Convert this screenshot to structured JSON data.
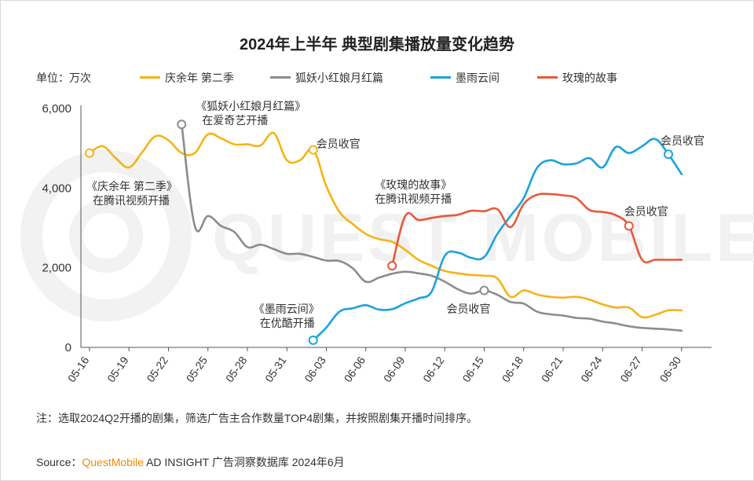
{
  "unit_label": "单位：万次",
  "note": "注：选取2024Q2开播的剧集，筛选广告主合作数量TOP4剧集，并按照剧集开播时间排序。",
  "source": {
    "prefix": "Source：",
    "brand": "QuestMobile",
    "rest": " AD INSIGHT 广告洞察数据库 2024年6月"
  },
  "watermark": "QUEST MOBILE",
  "chart_data": {
    "type": "line",
    "title": "2024年上半年 典型剧集播放量变化趋势",
    "ylim": [
      0,
      6000
    ],
    "yticks": [
      0,
      2000,
      4000,
      6000
    ],
    "ytick_labels": [
      "0",
      "2,000",
      "4,000",
      "6,000"
    ],
    "xticks": [
      "05-16",
      "05-19",
      "05-22",
      "05-25",
      "05-28",
      "05-31",
      "06-03",
      "06-06",
      "06-09",
      "06-12",
      "06-15",
      "06-18",
      "06-21",
      "06-24",
      "06-27",
      "06-30"
    ],
    "grid": false,
    "legend_position": "top",
    "series": [
      {
        "name": "庆余年 第二季",
        "color": "#f5b316",
        "points": [
          [
            "05-16",
            4880
          ],
          [
            "05-17",
            5050
          ],
          [
            "05-18",
            4750
          ],
          [
            "05-19",
            4520
          ],
          [
            "05-20",
            4900
          ],
          [
            "05-21",
            5300
          ],
          [
            "05-22",
            5200
          ],
          [
            "05-23",
            4880
          ],
          [
            "05-24",
            4880
          ],
          [
            "05-25",
            5350
          ],
          [
            "05-26",
            5250
          ],
          [
            "05-27",
            5100
          ],
          [
            "05-28",
            5100
          ],
          [
            "05-29",
            5070
          ],
          [
            "05-30",
            5380
          ],
          [
            "05-31",
            4700
          ],
          [
            "06-01",
            4700
          ],
          [
            "06-02",
            4960
          ],
          [
            "06-03",
            4050
          ],
          [
            "06-04",
            3400
          ],
          [
            "06-05",
            3100
          ],
          [
            "06-06",
            2850
          ],
          [
            "06-07",
            2720
          ],
          [
            "06-08",
            2650
          ],
          [
            "06-09",
            2450
          ],
          [
            "06-10",
            2200
          ],
          [
            "06-11",
            2050
          ],
          [
            "06-12",
            1920
          ],
          [
            "06-13",
            1860
          ],
          [
            "06-14",
            1820
          ],
          [
            "06-15",
            1800
          ],
          [
            "06-16",
            1730
          ],
          [
            "06-17",
            1270
          ],
          [
            "06-18",
            1430
          ],
          [
            "06-19",
            1330
          ],
          [
            "06-20",
            1270
          ],
          [
            "06-21",
            1250
          ],
          [
            "06-22",
            1270
          ],
          [
            "06-23",
            1200
          ],
          [
            "06-24",
            1080
          ],
          [
            "06-25",
            1000
          ],
          [
            "06-26",
            1000
          ],
          [
            "06-27",
            760
          ],
          [
            "06-28",
            820
          ],
          [
            "06-29",
            930
          ],
          [
            "06-30",
            930
          ]
        ]
      },
      {
        "name": "狐妖小红娘月红篇",
        "color": "#8c8c8c",
        "points": [
          [
            "05-23",
            5600
          ],
          [
            "05-24",
            3050
          ],
          [
            "05-25",
            3300
          ],
          [
            "05-26",
            3050
          ],
          [
            "05-27",
            2900
          ],
          [
            "05-28",
            2520
          ],
          [
            "05-29",
            2580
          ],
          [
            "05-30",
            2470
          ],
          [
            "05-31",
            2350
          ],
          [
            "06-01",
            2350
          ],
          [
            "06-02",
            2270
          ],
          [
            "06-03",
            2180
          ],
          [
            "06-04",
            2170
          ],
          [
            "06-05",
            1990
          ],
          [
            "06-06",
            1650
          ],
          [
            "06-07",
            1750
          ],
          [
            "06-08",
            1850
          ],
          [
            "06-09",
            1900
          ],
          [
            "06-10",
            1860
          ],
          [
            "06-11",
            1800
          ],
          [
            "06-12",
            1650
          ],
          [
            "06-13",
            1460
          ],
          [
            "06-14",
            1350
          ],
          [
            "06-15",
            1430
          ],
          [
            "06-16",
            1320
          ],
          [
            "06-17",
            1140
          ],
          [
            "06-18",
            1100
          ],
          [
            "06-19",
            900
          ],
          [
            "06-20",
            830
          ],
          [
            "06-21",
            800
          ],
          [
            "06-22",
            740
          ],
          [
            "06-23",
            720
          ],
          [
            "06-24",
            650
          ],
          [
            "06-25",
            600
          ],
          [
            "06-26",
            530
          ],
          [
            "06-27",
            490
          ],
          [
            "06-28",
            470
          ],
          [
            "06-29",
            450
          ],
          [
            "06-30",
            420
          ]
        ]
      },
      {
        "name": "墨雨云间",
        "color": "#1aa3dc",
        "points": [
          [
            "06-02",
            180
          ],
          [
            "06-03",
            500
          ],
          [
            "06-04",
            900
          ],
          [
            "06-05",
            980
          ],
          [
            "06-06",
            1060
          ],
          [
            "06-07",
            950
          ],
          [
            "06-08",
            960
          ],
          [
            "06-09",
            1110
          ],
          [
            "06-10",
            1230
          ],
          [
            "06-11",
            1400
          ],
          [
            "06-12",
            2300
          ],
          [
            "06-13",
            2380
          ],
          [
            "06-14",
            2250
          ],
          [
            "06-15",
            2270
          ],
          [
            "06-16",
            2850
          ],
          [
            "06-17",
            3300
          ],
          [
            "06-18",
            3750
          ],
          [
            "06-19",
            4500
          ],
          [
            "06-20",
            4700
          ],
          [
            "06-21",
            4600
          ],
          [
            "06-22",
            4620
          ],
          [
            "06-23",
            4750
          ],
          [
            "06-24",
            4520
          ],
          [
            "06-25",
            5030
          ],
          [
            "06-26",
            4880
          ],
          [
            "06-27",
            5050
          ],
          [
            "06-28",
            5230
          ],
          [
            "06-29",
            4850
          ],
          [
            "06-30",
            4350
          ]
        ]
      },
      {
        "name": "玫瑰的故事",
        "color": "#e8583c",
        "points": [
          [
            "06-08",
            2050
          ],
          [
            "06-09",
            3300
          ],
          [
            "06-10",
            3200
          ],
          [
            "06-11",
            3250
          ],
          [
            "06-12",
            3300
          ],
          [
            "06-13",
            3330
          ],
          [
            "06-14",
            3430
          ],
          [
            "06-15",
            3420
          ],
          [
            "06-16",
            3470
          ],
          [
            "06-17",
            3020
          ],
          [
            "06-18",
            3600
          ],
          [
            "06-19",
            3830
          ],
          [
            "06-20",
            3850
          ],
          [
            "06-21",
            3820
          ],
          [
            "06-22",
            3750
          ],
          [
            "06-23",
            3450
          ],
          [
            "06-24",
            3400
          ],
          [
            "06-25",
            3320
          ],
          [
            "06-26",
            3050
          ],
          [
            "06-27",
            2200
          ],
          [
            "06-28",
            2200
          ],
          [
            "06-29",
            2200
          ],
          [
            "06-30",
            2200
          ]
        ]
      }
    ],
    "markers": [
      {
        "series": 0,
        "x": "05-16"
      },
      {
        "series": 1,
        "x": "05-23"
      },
      {
        "series": 0,
        "x": "06-02"
      },
      {
        "series": 2,
        "x": "06-02"
      },
      {
        "series": 3,
        "x": "06-08"
      },
      {
        "series": 1,
        "x": "06-15"
      },
      {
        "series": 3,
        "x": "06-26"
      },
      {
        "series": 2,
        "x": "06-29"
      }
    ],
    "annotations": [
      {
        "text": [
          "《庆余年 第二季》",
          "在腾讯视频开播"
        ],
        "x": "05-16",
        "anchor": "below-right"
      },
      {
        "text": [
          "《狐妖小红娘月红篇》",
          "在爱奇艺开播"
        ],
        "x": "05-23",
        "anchor": "above-right"
      },
      {
        "text": [
          "会员收官"
        ],
        "x": "06-02",
        "anchor": "above-right"
      },
      {
        "text": [
          "《墨雨云间》",
          "在优酷开播"
        ],
        "x": "06-02",
        "anchor": "above-left"
      },
      {
        "text": [
          "《玫瑰的故事》",
          "在腾讯视频开播"
        ],
        "x": "06-08",
        "anchor": "above"
      },
      {
        "text": [
          "会员收官"
        ],
        "x": "06-15",
        "anchor": "below"
      },
      {
        "text": [
          "会员收官"
        ],
        "x": "06-26",
        "anchor": "above-right"
      },
      {
        "text": [
          "会员收官"
        ],
        "x": "06-29",
        "anchor": "above-right"
      }
    ]
  }
}
